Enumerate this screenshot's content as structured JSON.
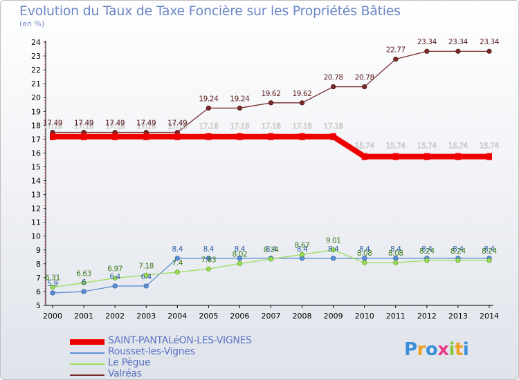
{
  "title": "Evolution du Taux de Taxe Foncière sur les Propriétés Bâties",
  "subtitle": "(en %)",
  "logo": {
    "text": "Proxiti"
  },
  "chart_data": {
    "type": "line",
    "title": "Evolution du Taux de Taxe Foncière sur les Propriétés Bâties",
    "ylabel": "(en %)",
    "xlabel": "",
    "x": [
      2000,
      2001,
      2002,
      2003,
      2004,
      2005,
      2006,
      2007,
      2008,
      2009,
      2010,
      2011,
      2012,
      2013,
      2014
    ],
    "ylim": [
      5,
      24
    ],
    "yticks": [
      5,
      6,
      7,
      8,
      9,
      10,
      11,
      12,
      13,
      14,
      15,
      16,
      17,
      18,
      19,
      20,
      21,
      22,
      23,
      24
    ],
    "grid": false,
    "legend_position": "bottom",
    "series": [
      {
        "name": "SAINT-PANTALéON-LES-VIGNES",
        "color": "#ee0000",
        "width": 8,
        "values": [
          17.18,
          17.18,
          17.18,
          17.18,
          17.18,
          17.18,
          17.18,
          17.18,
          17.18,
          17.18,
          15.74,
          15.74,
          15.74,
          15.74,
          15.74
        ],
        "labels": [
          "17.18",
          "17.18",
          "17.18",
          "17.18",
          "17.18",
          "17.18",
          "17.18",
          "17.18",
          "17.18",
          "17.18",
          "15.74",
          "15.74",
          "15.74",
          "15.74",
          "15.74"
        ]
      },
      {
        "name": "Rousset-les-Vignes",
        "color": "#5b8fd6",
        "width": 1.3,
        "values": [
          5.9,
          6.0,
          6.4,
          6.4,
          8.4,
          8.4,
          8.4,
          8.4,
          8.4,
          8.4,
          8.4,
          8.4,
          8.4,
          8.4,
          8.4
        ],
        "labels": [
          "5.9",
          "6",
          "6.4",
          "6.4",
          "8.4",
          "8.4",
          "8.4",
          "8.4",
          "8.4",
          "8.4",
          "8.4",
          "8.4",
          "8.4",
          "8.4",
          "8.4"
        ]
      },
      {
        "name": "Le Pègue",
        "color": "#99dd55",
        "width": 1.3,
        "values": [
          6.31,
          6.63,
          6.97,
          7.18,
          7.4,
          7.63,
          8.02,
          8.34,
          8.67,
          9.01,
          8.08,
          8.08,
          8.24,
          8.24,
          8.24
        ],
        "labels": [
          "6.31",
          "6.63",
          "6.97",
          "7.18",
          "7.4",
          "7.63",
          "8.02",
          "8.34",
          "8.67",
          "9.01",
          "8.08",
          "8.08",
          "8.24",
          "8.24",
          "8.24"
        ]
      },
      {
        "name": "Valréas",
        "color": "#7a2a2a",
        "width": 1.3,
        "values": [
          17.49,
          17.49,
          17.49,
          17.49,
          17.49,
          19.24,
          19.24,
          19.62,
          19.62,
          20.78,
          20.78,
          22.77,
          23.34,
          23.34,
          23.34
        ],
        "labels": [
          "17.49",
          "17.49",
          "17.49",
          "17.49",
          "17.49",
          "19.24",
          "19.24",
          "19.62",
          "19.62",
          "20.78",
          "20.78",
          "22.77",
          "23.34",
          "23.34",
          "23.34"
        ]
      }
    ]
  }
}
